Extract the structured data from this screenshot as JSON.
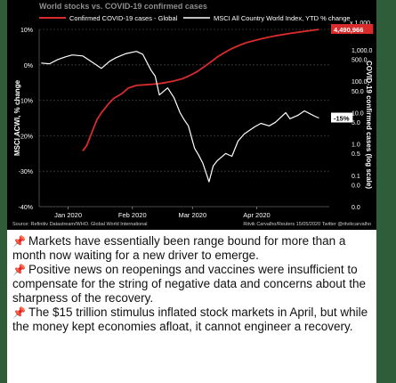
{
  "chart_data": {
    "type": "line",
    "title": "World stocks vs. COVID-19 confirmed cases",
    "series": [
      {
        "name": "Confirmed COVID-19 cases - Global",
        "color": "#d92b2b",
        "axis": "right",
        "x": [
          "2020-01-22",
          "2020-01-24",
          "2020-01-27",
          "2020-01-29",
          "2020-01-31",
          "2020-02-03",
          "2020-02-06",
          "2020-02-10",
          "2020-02-13",
          "2020-02-17",
          "2020-02-21",
          "2020-02-25",
          "2020-02-28",
          "2020-03-03",
          "2020-03-06",
          "2020-03-10",
          "2020-03-13",
          "2020-03-17",
          "2020-03-20",
          "2020-03-24",
          "2020-03-27",
          "2020-03-31",
          "2020-04-03",
          "2020-04-07",
          "2020-04-10",
          "2020-04-14",
          "2020-04-17",
          "2020-04-21",
          "2020-04-24",
          "2020-04-28",
          "2020-05-01",
          "2020-05-05",
          "2020-05-08",
          "2020-05-12",
          "2020-05-15"
        ],
        "y": [
          0.6,
          0.9,
          2.9,
          6.1,
          9.8,
          17.4,
          28.3,
          40.6,
          60.4,
          73.3,
          76.8,
          80.4,
          84.1,
          92.8,
          101.8,
          119.1,
          145.2,
          197.2,
          272.2,
          417.9,
          593.3,
          857.5,
          1100,
          1430,
          1700,
          1980,
          2250,
          2560,
          2800,
          3100,
          3350,
          3650,
          3900,
          4200,
          4490
        ]
      },
      {
        "name": "MSCI All Country World Index, YTD % change",
        "color": "#ffffff",
        "axis": "left",
        "x": [
          "2020-01-02",
          "2020-01-06",
          "2020-01-10",
          "2020-01-14",
          "2020-01-17",
          "2020-01-22",
          "2020-01-27",
          "2020-01-31",
          "2020-02-04",
          "2020-02-07",
          "2020-02-12",
          "2020-02-17",
          "2020-02-20",
          "2020-02-24",
          "2020-02-26",
          "2020-02-28",
          "2020-03-03",
          "2020-03-06",
          "2020-03-09",
          "2020-03-11",
          "2020-03-13",
          "2020-03-16",
          "2020-03-18",
          "2020-03-20",
          "2020-03-23",
          "2020-03-25",
          "2020-03-27",
          "2020-03-31",
          "2020-04-03",
          "2020-04-06",
          "2020-04-09",
          "2020-04-14",
          "2020-04-17",
          "2020-04-21",
          "2020-04-24",
          "2020-04-29",
          "2020-05-01",
          "2020-05-05",
          "2020-05-08",
          "2020-05-13",
          "2020-05-15"
        ],
        "y": [
          0.5,
          0.3,
          1.5,
          2.3,
          2.8,
          2.5,
          0.6,
          -1.0,
          1.0,
          2.0,
          3.2,
          3.8,
          3.0,
          -1.5,
          -3.2,
          -8.5,
          -6.5,
          -9.2,
          -13.5,
          -15.5,
          -17.2,
          -23.5,
          -25.5,
          -27.8,
          -33.0,
          -28.5,
          -27.0,
          -25.0,
          -25.8,
          -21.5,
          -19.5,
          -17.5,
          -16.5,
          -17.2,
          -16.2,
          -13.5,
          -15.2,
          -14.2,
          -13.0,
          -14.5,
          -15.0
        ]
      }
    ],
    "y_left": {
      "label": "MSCI ACWI, % change",
      "min": -40,
      "max": 10,
      "ticks": [
        10,
        0,
        -10,
        -20,
        -30,
        -40
      ],
      "tick_labels": [
        "10%",
        "0%",
        "-10%",
        "-20%",
        "-30%",
        "-40%"
      ]
    },
    "y_right": {
      "label": "COVID-19 confirmed cases (log scale)",
      "scale": "log",
      "unit_label": "x 1,000",
      "min": 0.01,
      "max": 4490,
      "ticks": [
        1000,
        500,
        100,
        50,
        10,
        5,
        1,
        0.5,
        0.1,
        0.05,
        0.01
      ],
      "tick_labels": [
        "1,000.0",
        "500.0",
        "100.0",
        "50.0",
        "10.0",
        "5.0",
        "1.0",
        "0.5",
        "0.1",
        "0.0",
        "0.0"
      ]
    },
    "x_axis": {
      "start": "2020-01-01",
      "end": "2020-05-20",
      "ticks": [
        "2020-01-15",
        "2020-02-15",
        "2020-03-15",
        "2020-04-15"
      ],
      "tick_labels": [
        "Jan 2020",
        "Feb 2020",
        "Mar 2020",
        "Apr 2020"
      ]
    },
    "end_labels": [
      {
        "series": 0,
        "text": "4,490,966",
        "bg": "#d92b2b",
        "fg": "#ffffff"
      },
      {
        "series": 1,
        "text": "-15%",
        "bg": "#ffffff",
        "fg": "#000000"
      }
    ],
    "legend_placement": "top",
    "grid": "horizontal",
    "source": "Source: Refinitiv Datastream/WHO. Global World International",
    "credit": "Ritvik Carvalho/Reuters 15/05/2020 Twitter @ritvikcarvalho"
  },
  "caption": {
    "icon": "pushpin-icon",
    "paragraphs": [
      "Markets have essentially been range bound for more than a month now waiting for a new driver to emerge.",
      "Positive news on reopenings and vaccines were insufficient to compensate for the string of negative data and concerns about the sharpness of the recovery.",
      "The $15 trillion stimulus inflated stock markets in April, but while the money kept economies afloat, it cannot engineer a recovery."
    ]
  }
}
